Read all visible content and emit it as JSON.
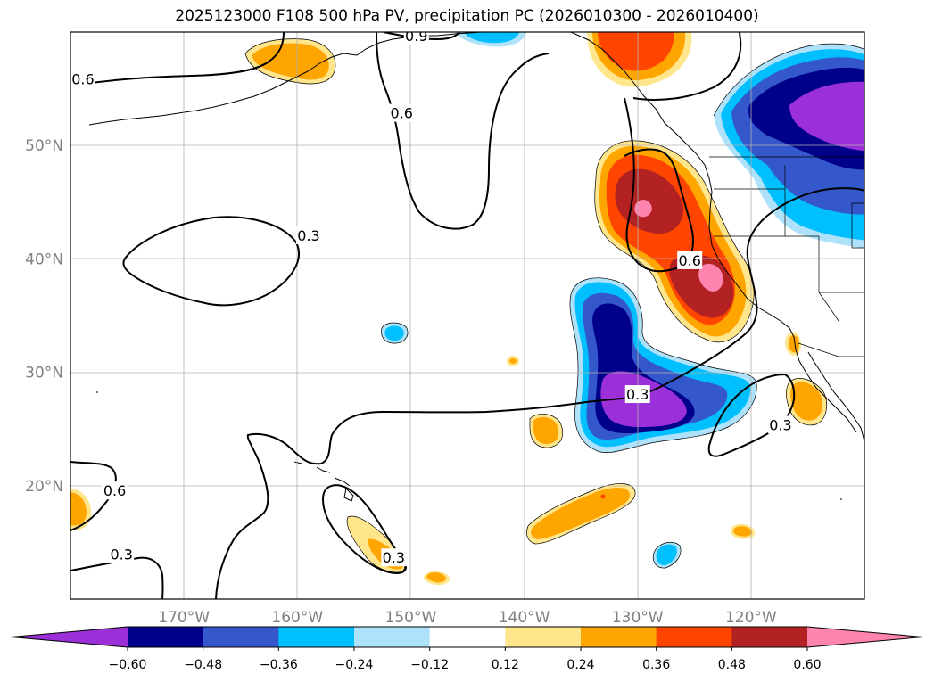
{
  "title": "2025123000 F108 500 hPa PV, precipitation PC (2026010300 - 2026010400)",
  "map": {
    "lon_range": [
      -180,
      -110
    ],
    "lat_range": [
      10,
      60
    ],
    "lat_ticks": [
      {
        "value": 50,
        "label": "50°N"
      },
      {
        "value": 40,
        "label": "40°N"
      },
      {
        "value": 30,
        "label": "30°N"
      },
      {
        "value": 20,
        "label": "20°N"
      }
    ],
    "lon_ticks": [
      {
        "value": -170,
        "label": "170°W"
      },
      {
        "value": -160,
        "label": "160°W"
      },
      {
        "value": -150,
        "label": "150°W"
      },
      {
        "value": -140,
        "label": "140°W"
      },
      {
        "value": -130,
        "label": "130°W"
      },
      {
        "value": -120,
        "label": "120°W"
      }
    ],
    "pv_contour_labels": [
      {
        "text": "0.6",
        "lon": -178.9,
        "lat": 55.8
      },
      {
        "text": "0.9",
        "lon": -149.5,
        "lat": 59.6
      },
      {
        "text": "0.6",
        "lon": -150.8,
        "lat": 52.8
      },
      {
        "text": "0.3",
        "lon": -159.0,
        "lat": 42.0
      },
      {
        "text": "0.6",
        "lon": -125.4,
        "lat": 39.8
      },
      {
        "text": "0.3",
        "lon": -130.0,
        "lat": 28.0
      },
      {
        "text": "0.3",
        "lon": -117.4,
        "lat": 25.3
      },
      {
        "text": "0.6",
        "lon": -176.1,
        "lat": 19.5
      },
      {
        "text": "0.3",
        "lon": -175.5,
        "lat": 13.9
      },
      {
        "text": "0.3",
        "lon": -151.5,
        "lat": 13.6
      }
    ]
  },
  "colorbar": {
    "levels": [
      -0.6,
      -0.48,
      -0.36,
      -0.24,
      -0.12,
      0.12,
      0.24,
      0.36,
      0.48,
      0.6
    ],
    "labels": [
      "−0.60",
      "−0.48",
      "−0.36",
      "−0.24",
      "−0.12",
      "0.12",
      "0.24",
      "0.36",
      "0.48",
      "0.60"
    ],
    "colors": [
      "#9b30d8",
      "#00008b",
      "#3458cc",
      "#00bfff",
      "#aee2fa",
      "#ffffff",
      "#ffe68c",
      "#ffa500",
      "#ff4500",
      "#b22222",
      "#ff85b0"
    ]
  }
}
